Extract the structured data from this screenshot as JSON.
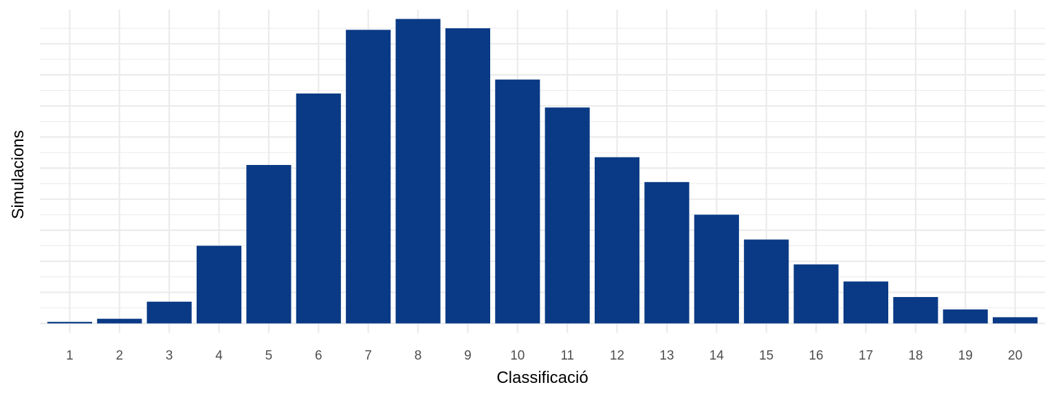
{
  "chart_data": {
    "type": "bar",
    "title": "",
    "xlabel": "Classificació",
    "ylabel": "Simulacions",
    "categories": [
      "1",
      "2",
      "3",
      "4",
      "5",
      "6",
      "7",
      "8",
      "9",
      "10",
      "11",
      "12",
      "13",
      "14",
      "15",
      "16",
      "17",
      "18",
      "19",
      "20"
    ],
    "values": [
      0.5,
      1.5,
      7,
      25,
      51,
      74,
      94.5,
      98,
      95,
      78.5,
      69.5,
      53.5,
      45.5,
      35,
      27,
      19,
      13.5,
      8.5,
      4.5,
      2
    ],
    "ylim": [
      -3,
      101
    ],
    "y_tick_labels_shown": false,
    "grid": true,
    "legend": "none",
    "colors": {
      "bar": "#0a3a85",
      "grid": "#ebebeb",
      "background": "#ffffff"
    }
  }
}
